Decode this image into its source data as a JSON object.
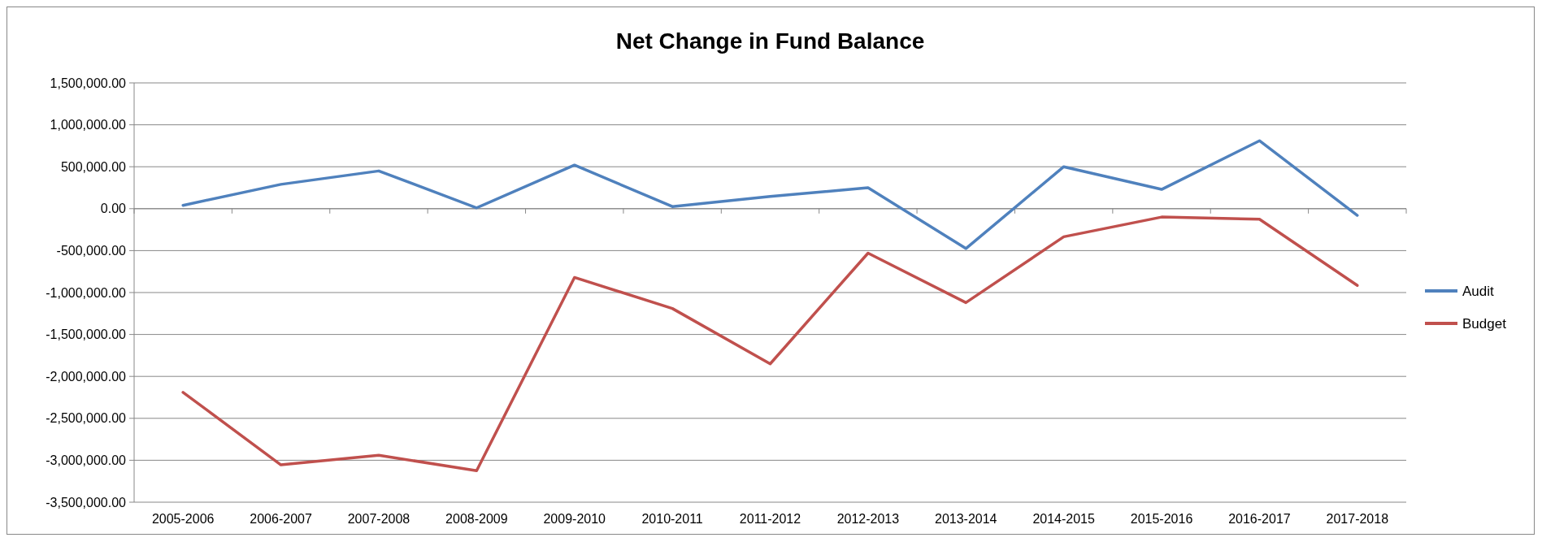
{
  "chart_data": {
    "type": "line",
    "title": "Net Change in Fund Balance",
    "categories": [
      "2005-2006",
      "2006-2007",
      "2007-2008",
      "2008-2009",
      "2009-2010",
      "2010-2011",
      "2011-2012",
      "2012-2013",
      "2013-2014",
      "2014-2015",
      "2015-2016",
      "2016-2017",
      "2017-2018"
    ],
    "series": [
      {
        "name": "Audit",
        "color": "#4f81bd",
        "values": [
          40000,
          290000,
          450000,
          10000,
          520000,
          25000,
          145000,
          250000,
          -475000,
          500000,
          230000,
          810000,
          -80000
        ]
      },
      {
        "name": "Budget",
        "color": "#c0504d",
        "values": [
          -2190000,
          -3055000,
          -2940000,
          -3125000,
          -820000,
          -1190000,
          -1850000,
          -530000,
          -1120000,
          -335000,
          -100000,
          -125000,
          -915000
        ]
      }
    ],
    "ylim": [
      -3500000,
      1500000
    ],
    "yticks": [
      {
        "value": -3500000,
        "label": "-3,500,000.00"
      },
      {
        "value": -3000000,
        "label": "-3,000,000.00"
      },
      {
        "value": -2500000,
        "label": "-2,500,000.00"
      },
      {
        "value": -2000000,
        "label": "-2,000,000.00"
      },
      {
        "value": -1500000,
        "label": "-1,500,000.00"
      },
      {
        "value": -1000000,
        "label": "-1,000,000.00"
      },
      {
        "value": -500000,
        "label": "-500,000.00"
      },
      {
        "value": 0,
        "label": "0.00"
      },
      {
        "value": 500000,
        "label": "500,000.00"
      },
      {
        "value": 1000000,
        "label": "1,000,000.00"
      },
      {
        "value": 1500000,
        "label": "1,500,000.00"
      }
    ],
    "grid": "y",
    "legend": "right",
    "marker": "none",
    "line_style": "solid"
  }
}
